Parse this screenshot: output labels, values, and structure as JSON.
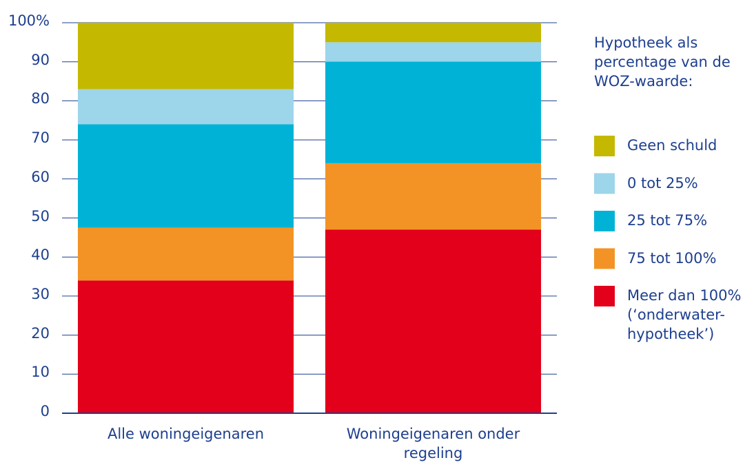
{
  "chart_data": {
    "type": "stacked_bar",
    "categories": [
      "Alle woningeigenaren",
      "Woningeigenaren onder regeling"
    ],
    "series": [
      {
        "name": "Meer dan 100% (‘onderwater-hypotheek’)",
        "color": "#e2001a",
        "values": [
          34,
          47
        ]
      },
      {
        "name": "75 tot 100%",
        "color": "#f39325",
        "values": [
          13.5,
          17
        ]
      },
      {
        "name": "25 tot 75%",
        "color": "#00b3d6",
        "values": [
          26.5,
          26
        ]
      },
      {
        "name": "0 tot 25%",
        "color": "#9dd5ea",
        "values": [
          9,
          5
        ]
      },
      {
        "name": "Geen schuld",
        "color": "#c4b800",
        "values": [
          17,
          5
        ]
      }
    ],
    "legend_title": "Hypotheek als percentage van de WOZ-waarde:",
    "ylim": [
      0,
      100
    ],
    "yticks": [
      0,
      10,
      20,
      30,
      40,
      50,
      60,
      70,
      80,
      90,
      {
        "value": 100,
        "label": "100%"
      }
    ],
    "grid": true
  }
}
